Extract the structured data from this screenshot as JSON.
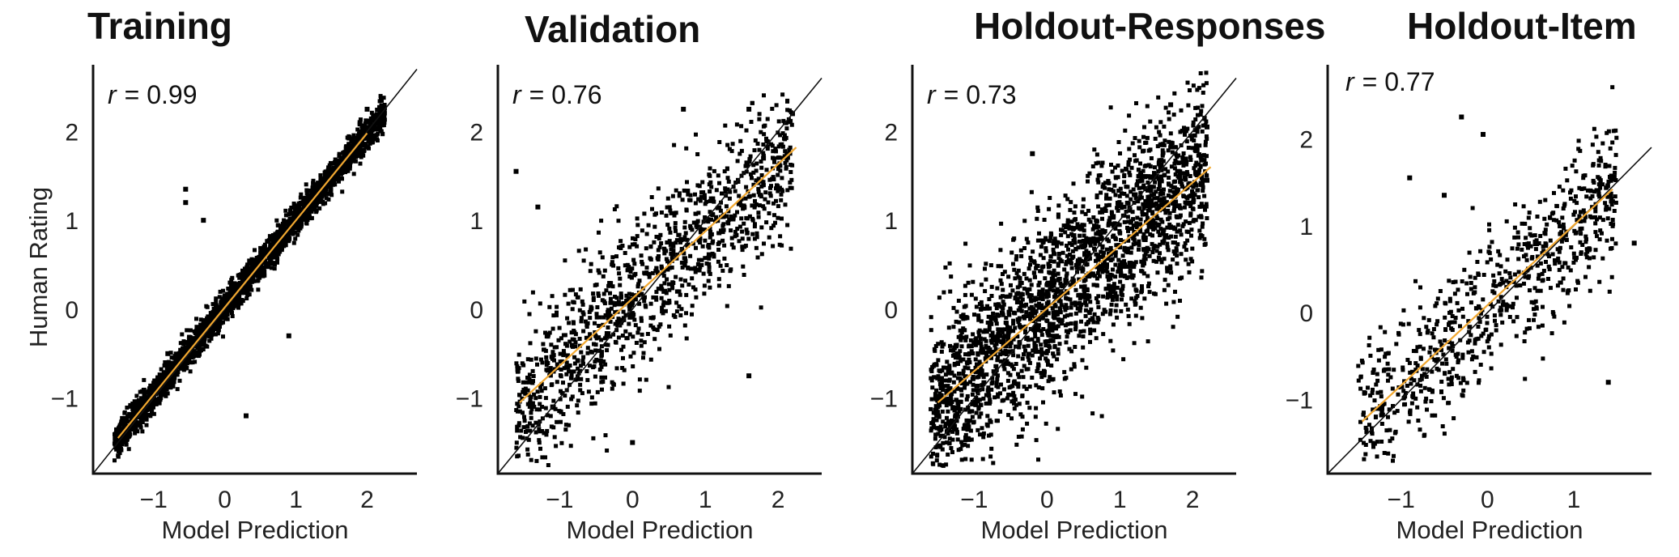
{
  "figure": {
    "ylabel": "Human Rating",
    "xlabel": "Model Prediction",
    "fit_color": "#f2a830",
    "identity_color": "#111111",
    "point_color": "#000000"
  },
  "chart_data": [
    {
      "type": "scatter",
      "title": "Training",
      "xlabel": "Model Prediction",
      "ylabel": "Human Rating",
      "r_label": "r",
      "r_value": "= 0.99",
      "xlim": [
        -1.85,
        2.7
      ],
      "ylim": [
        -1.85,
        2.75
      ],
      "xticks": [
        -1,
        0,
        1,
        2
      ],
      "yticks": [
        -1,
        0,
        1,
        2
      ],
      "fit_line": {
        "x": [
          -1.5,
          2.0
        ],
        "y": [
          -1.45,
          1.98
        ]
      },
      "point_cloud": {
        "count": 2600,
        "x_range": [
          -1.55,
          2.25
        ],
        "slope": 0.98,
        "intercept": 0.02,
        "noise_sd": 0.09
      },
      "outliers": {
        "x": [
          -0.55,
          -0.55,
          -0.3,
          0.3,
          0.8,
          0.9,
          -0.8,
          1.9,
          2.2,
          2.0
        ],
        "y": [
          1.35,
          1.2,
          1.0,
          -1.2,
          0.8,
          -0.3,
          -0.5,
          2.1,
          2.35,
          2.25
        ]
      }
    },
    {
      "type": "scatter",
      "title": "Validation",
      "xlabel": "Model Prediction",
      "ylabel": "",
      "r_label": "r",
      "r_value": "= 0.76",
      "xlim": [
        -1.85,
        2.6
      ],
      "ylim": [
        -1.85,
        2.75
      ],
      "xticks": [
        -1,
        0,
        1,
        2
      ],
      "yticks": [
        -1,
        0,
        1,
        2
      ],
      "fit_line": {
        "x": [
          -1.55,
          2.25
        ],
        "y": [
          -1.05,
          1.82
        ]
      },
      "point_cloud": {
        "count": 1200,
        "x_range": [
          -1.6,
          2.2
        ],
        "slope": 0.76,
        "intercept": 0.1,
        "noise_sd": 0.45
      },
      "outliers": {
        "x": [
          0.7,
          1.6,
          2.2,
          -1.6,
          -1.3,
          1.6,
          0.0,
          1.8
        ],
        "y": [
          2.25,
          2.25,
          2.2,
          1.55,
          1.15,
          -0.75,
          -1.5,
          1.7
        ]
      }
    },
    {
      "type": "scatter",
      "title": "Holdout-Responses",
      "xlabel": "Model Prediction",
      "ylabel": "",
      "r_label": "r",
      "r_value": "= 0.73",
      "xlim": [
        -1.85,
        2.6
      ],
      "ylim": [
        -1.85,
        2.75
      ],
      "xticks": [
        -1,
        0,
        1,
        2
      ],
      "yticks": [
        -1,
        0,
        1,
        2
      ],
      "fit_line": {
        "x": [
          -1.5,
          2.25
        ],
        "y": [
          -1.05,
          1.6
        ]
      },
      "point_cloud": {
        "count": 2400,
        "x_range": [
          -1.6,
          2.2
        ],
        "slope": 0.72,
        "intercept": 0.05,
        "noise_sd": 0.5
      },
      "outliers": {
        "x": [
          1.7,
          2.2,
          2.2,
          -0.2
        ],
        "y": [
          2.3,
          2.05,
          1.45,
          1.75
        ]
      }
    },
    {
      "type": "scatter",
      "title": "Holdout-Item",
      "xlabel": "Model Prediction",
      "ylabel": "",
      "r_label": "r",
      "r_value": "= 0.77",
      "xlim": [
        -1.85,
        1.9
      ],
      "ylim": [
        -1.85,
        2.85
      ],
      "xticks": [
        -1,
        0,
        1
      ],
      "yticks": [
        -1,
        0,
        1,
        2
      ],
      "fit_line": {
        "x": [
          -1.45,
          1.45
        ],
        "y": [
          -1.25,
          1.42
        ]
      },
      "point_cloud": {
        "count": 750,
        "x_range": [
          -1.5,
          1.5
        ],
        "slope": 0.9,
        "intercept": 0.05,
        "noise_sd": 0.4
      },
      "outliers": {
        "x": [
          -0.3,
          -0.05,
          -0.9,
          -0.5,
          1.45,
          1.7,
          1.4
        ],
        "y": [
          2.25,
          2.05,
          1.55,
          1.35,
          1.55,
          0.8,
          -0.8
        ]
      }
    }
  ]
}
